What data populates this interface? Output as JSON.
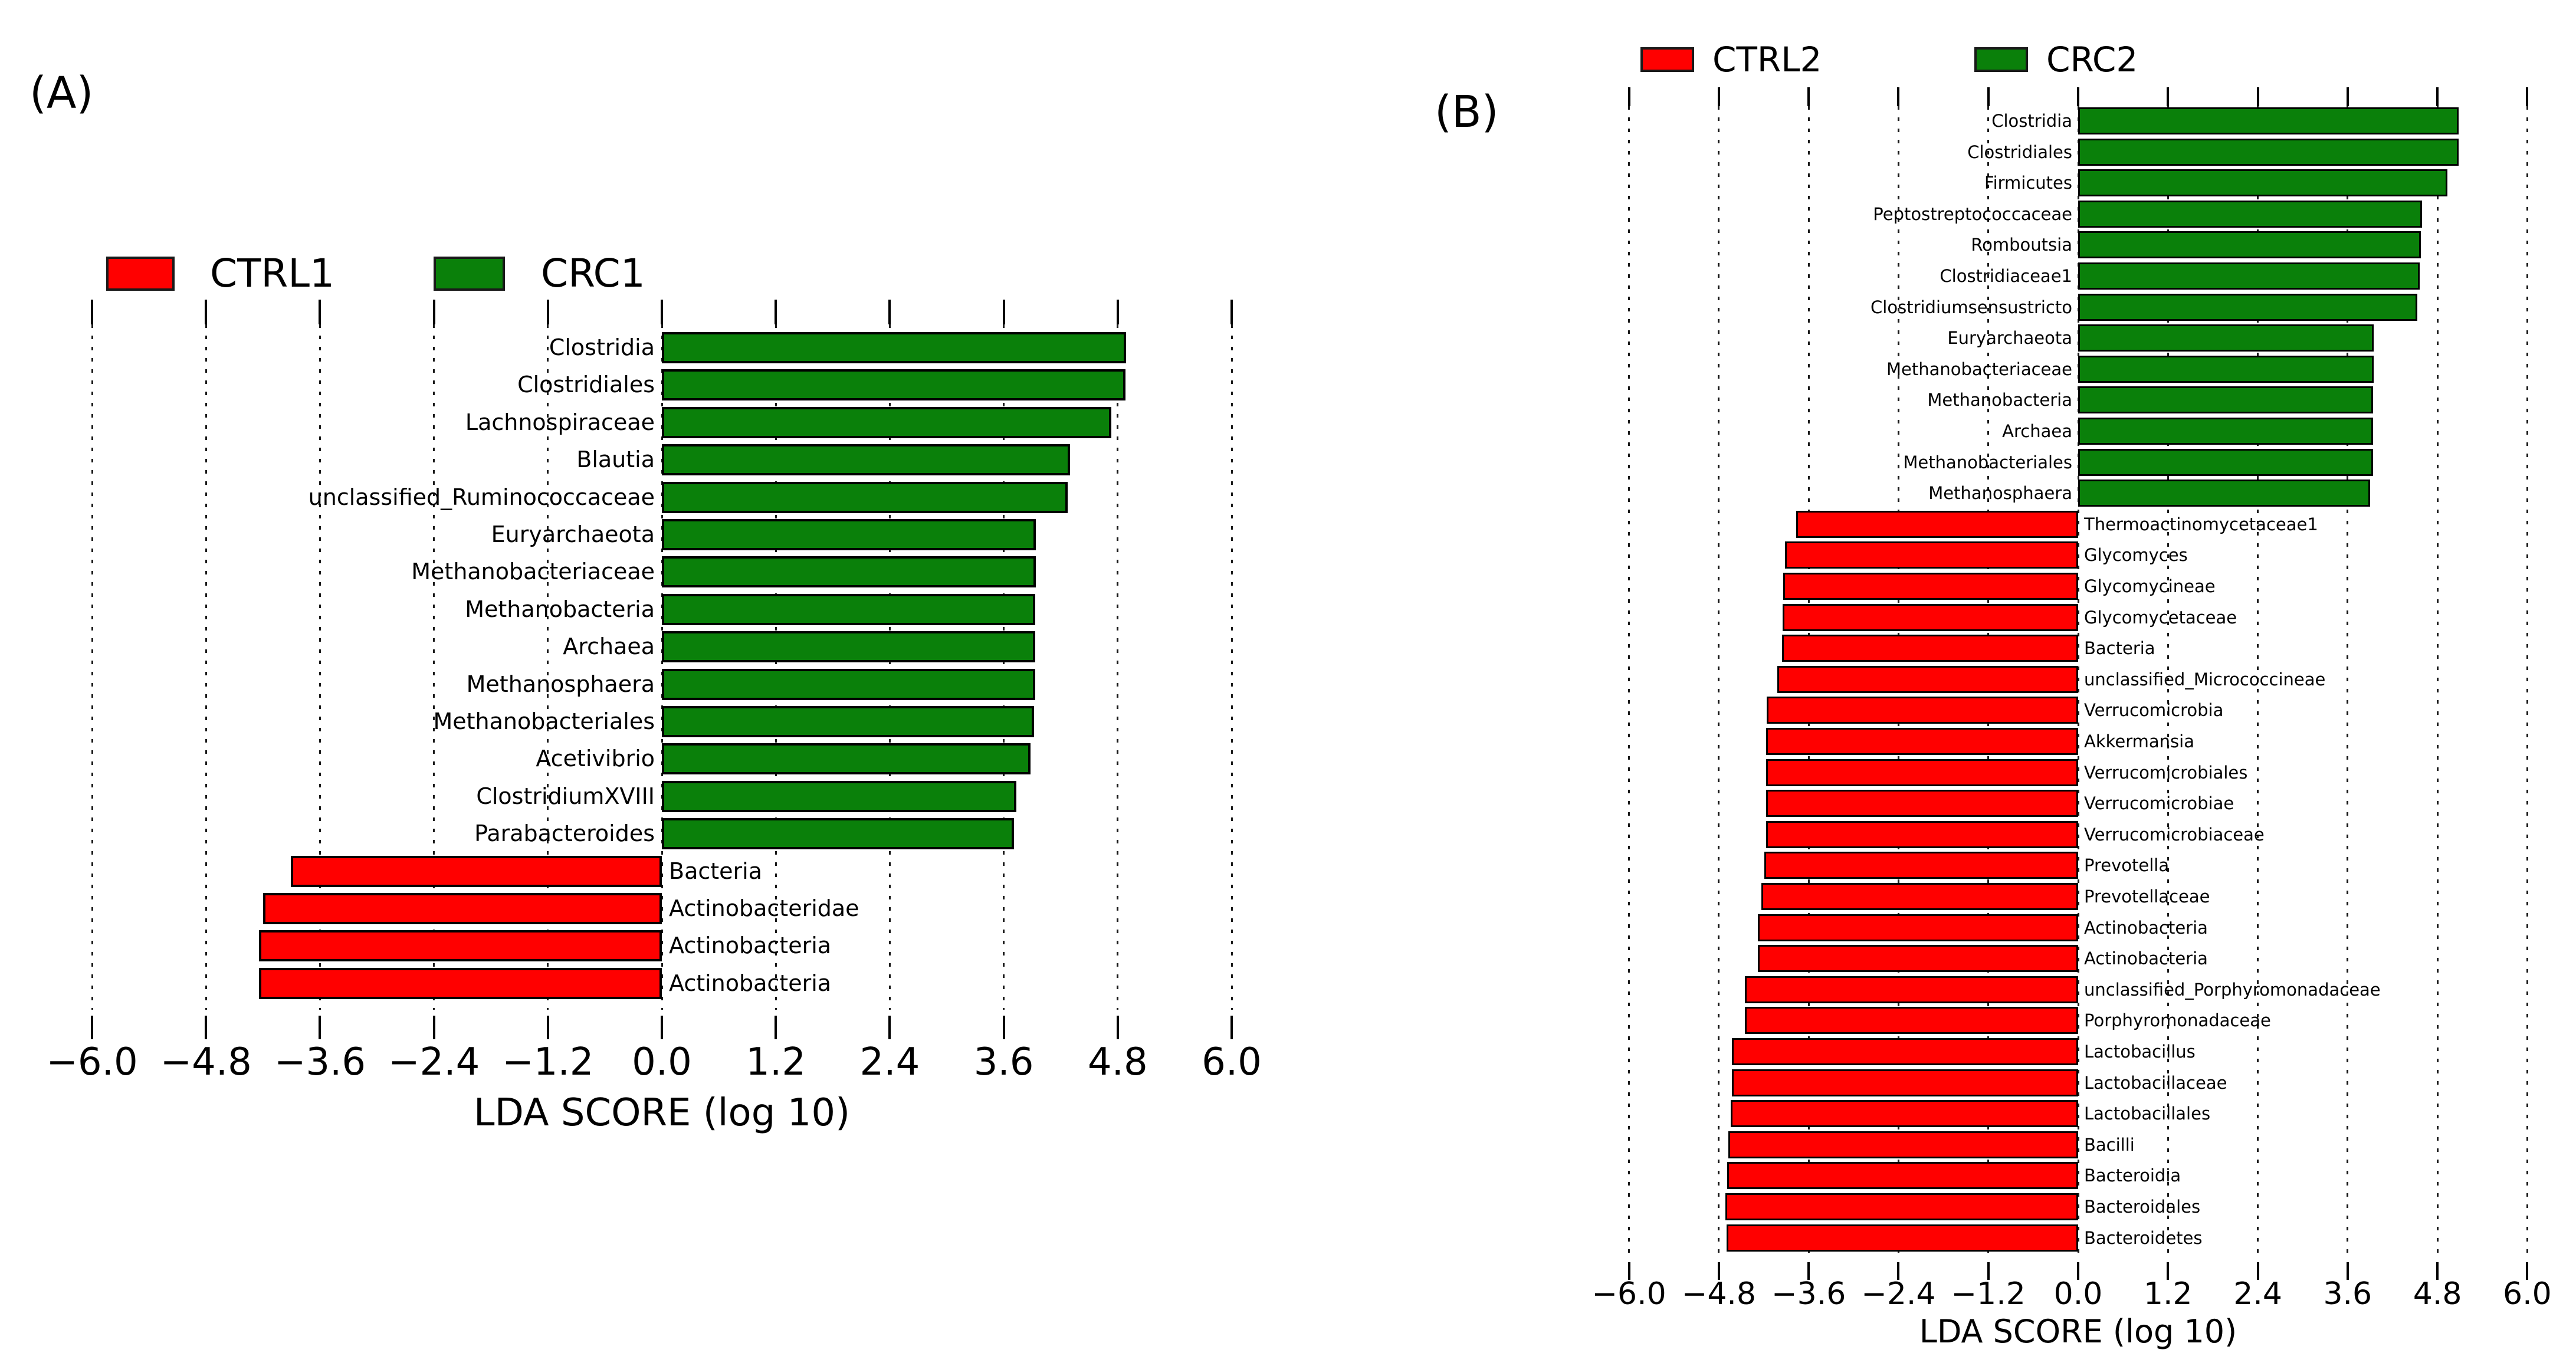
{
  "figure_background": "#ffffff",
  "bar_edge_color": "#000000",
  "chart_data": [
    {
      "panel_label": "(A)",
      "type": "bar",
      "orientation": "horizontal",
      "xlabel": "LDA SCORE (log 10)",
      "xlim": [
        -6.0,
        6.0
      ],
      "xticks": [
        -6.0,
        -4.8,
        -3.6,
        -2.4,
        -1.2,
        0.0,
        1.2,
        2.4,
        3.6,
        4.8,
        6.0
      ],
      "grid": "dashed vertical gridlines at every xtick, ticks on top and bottom edges",
      "legend_position": "above plot, horizontal",
      "legend": [
        {
          "label": "CTRL1",
          "color": "#ff0000"
        },
        {
          "label": "CRC1",
          "color": "#0a800a"
        }
      ],
      "bars": [
        {
          "taxon": "Clostridia",
          "group": "CRC1",
          "lda": 4.89
        },
        {
          "taxon": "Clostridiales",
          "group": "CRC1",
          "lda": 4.88
        },
        {
          "taxon": "Lachnospiraceae",
          "group": "CRC1",
          "lda": 4.73
        },
        {
          "taxon": "Blautia",
          "group": "CRC1",
          "lda": 4.3
        },
        {
          "taxon": "unclassified_Ruminococcaceae",
          "group": "CRC1",
          "lda": 4.27
        },
        {
          "taxon": "Euryarchaeota",
          "group": "CRC1",
          "lda": 3.94
        },
        {
          "taxon": "Methanobacteriaceae",
          "group": "CRC1",
          "lda": 3.94
        },
        {
          "taxon": "Methanobacteria",
          "group": "CRC1",
          "lda": 3.93
        },
        {
          "taxon": "Archaea",
          "group": "CRC1",
          "lda": 3.93
        },
        {
          "taxon": "Methanosphaera",
          "group": "CRC1",
          "lda": 3.93
        },
        {
          "taxon": "Methanobacteriales",
          "group": "CRC1",
          "lda": 3.92
        },
        {
          "taxon": "Acetivibrio",
          "group": "CRC1",
          "lda": 3.88
        },
        {
          "taxon": "ClostridiumXVIII",
          "group": "CRC1",
          "lda": 3.73
        },
        {
          "taxon": "Parabacteroides",
          "group": "CRC1",
          "lda": 3.71
        },
        {
          "taxon": "Bacteria",
          "group": "CTRL1",
          "lda": -3.91
        },
        {
          "taxon": "Actinobacteridae",
          "group": "CTRL1",
          "lda": -4.2
        },
        {
          "taxon": "Actinobacteria",
          "group": "CTRL1",
          "lda": -4.24
        },
        {
          "taxon": "Actinobacteria",
          "group": "CTRL1",
          "lda": -4.24
        }
      ]
    },
    {
      "panel_label": "(B)",
      "type": "bar",
      "orientation": "horizontal",
      "xlabel": "LDA SCORE (log 10)",
      "xlim": [
        -6.0,
        6.0
      ],
      "xticks": [
        -6.0,
        -4.8,
        -3.6,
        -2.4,
        -1.2,
        0.0,
        1.2,
        2.4,
        3.6,
        4.8,
        6.0
      ],
      "grid": "dashed vertical gridlines at every xtick, ticks on top and bottom edges",
      "legend_position": "above plot, horizontal",
      "legend": [
        {
          "label": "CTRL2",
          "color": "#ff0000"
        },
        {
          "label": "CRC2",
          "color": "#0a800a"
        }
      ],
      "bars": [
        {
          "taxon": "Clostridia",
          "group": "CRC2",
          "lda": 5.08
        },
        {
          "taxon": "Clostridiales",
          "group": "CRC2",
          "lda": 5.08
        },
        {
          "taxon": "Firmicutes",
          "group": "CRC2",
          "lda": 4.93
        },
        {
          "taxon": "Peptostreptococcaceae",
          "group": "CRC2",
          "lda": 4.59
        },
        {
          "taxon": "Romboutsia",
          "group": "CRC2",
          "lda": 4.58
        },
        {
          "taxon": "Clostridiaceae1",
          "group": "CRC2",
          "lda": 4.56
        },
        {
          "taxon": "Clostridiumsensustricto",
          "group": "CRC2",
          "lda": 4.53
        },
        {
          "taxon": "Euryarchaeota",
          "group": "CRC2",
          "lda": 3.95
        },
        {
          "taxon": "Methanobacteriaceae",
          "group": "CRC2",
          "lda": 3.95
        },
        {
          "taxon": "Methanobacteria",
          "group": "CRC2",
          "lda": 3.94
        },
        {
          "taxon": "Archaea",
          "group": "CRC2",
          "lda": 3.94
        },
        {
          "taxon": "Methanobacteriales",
          "group": "CRC2",
          "lda": 3.94
        },
        {
          "taxon": "Methanosphaera",
          "group": "CRC2",
          "lda": 3.9
        },
        {
          "taxon": "Thermoactinomycetaceae1",
          "group": "CTRL2",
          "lda": -3.77
        },
        {
          "taxon": "Glycomyces",
          "group": "CTRL2",
          "lda": -3.92
        },
        {
          "taxon": "Glycomycineae",
          "group": "CTRL2",
          "lda": -3.94
        },
        {
          "taxon": "Glycomycetaceae",
          "group": "CTRL2",
          "lda": -3.95
        },
        {
          "taxon": "Bacteria",
          "group": "CTRL2",
          "lda": -3.96
        },
        {
          "taxon": "unclassified_Micrococcineae",
          "group": "CTRL2",
          "lda": -4.02
        },
        {
          "taxon": "Verrucomicrobia",
          "group": "CTRL2",
          "lda": -4.16
        },
        {
          "taxon": "Akkermansia",
          "group": "CTRL2",
          "lda": -4.17
        },
        {
          "taxon": "Verrucomicrobiales",
          "group": "CTRL2",
          "lda": -4.17
        },
        {
          "taxon": "Verrucomicrobiae",
          "group": "CTRL2",
          "lda": -4.17
        },
        {
          "taxon": "Verrucomicrobiaceae",
          "group": "CTRL2",
          "lda": -4.17
        },
        {
          "taxon": "Prevotella",
          "group": "CTRL2",
          "lda": -4.19
        },
        {
          "taxon": "Prevotellaceae",
          "group": "CTRL2",
          "lda": -4.23
        },
        {
          "taxon": "Actinobacteria",
          "group": "CTRL2",
          "lda": -4.28
        },
        {
          "taxon": "Actinobacteria",
          "group": "CTRL2",
          "lda": -4.28
        },
        {
          "taxon": "unclassified_Porphyromonadaceae",
          "group": "CTRL2",
          "lda": -4.45
        },
        {
          "taxon": "Porphyromonadaceae",
          "group": "CTRL2",
          "lda": -4.45
        },
        {
          "taxon": "Lactobacillus",
          "group": "CTRL2",
          "lda": -4.63
        },
        {
          "taxon": "Lactobacillaceae",
          "group": "CTRL2",
          "lda": -4.63
        },
        {
          "taxon": "Lactobacillales",
          "group": "CTRL2",
          "lda": -4.64
        },
        {
          "taxon": "Bacilli",
          "group": "CTRL2",
          "lda": -4.67
        },
        {
          "taxon": "Bacteroidia",
          "group": "CTRL2",
          "lda": -4.69
        },
        {
          "taxon": "Bacteroidales",
          "group": "CTRL2",
          "lda": -4.71
        },
        {
          "taxon": "Bacteroidetes",
          "group": "CTRL2",
          "lda": -4.7
        }
      ]
    }
  ]
}
